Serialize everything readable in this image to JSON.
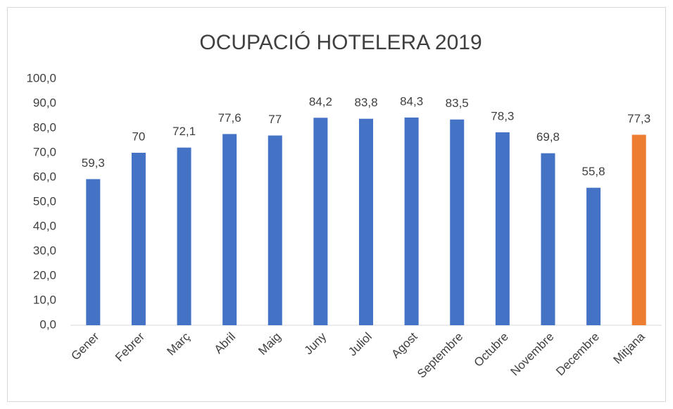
{
  "chart_data": {
    "type": "bar",
    "title": "OCUPACIÓ HOTELERA 2019",
    "categories": [
      "Gener",
      "Febrer",
      "Març",
      "Abril",
      "Maig",
      "Juny",
      "Juliol",
      "Agost",
      "Septembre",
      "Octubre",
      "Novembre",
      "Decembre",
      "Mitjana"
    ],
    "values": [
      59.3,
      70,
      72.1,
      77.6,
      77,
      84.2,
      83.8,
      84.3,
      83.5,
      78.3,
      69.8,
      55.8,
      77.3
    ],
    "value_labels": [
      "59,3",
      "70",
      "72,1",
      "77,6",
      "77",
      "84,2",
      "83,8",
      "84,3",
      "83,5",
      "78,3",
      "69,8",
      "55,8",
      "77,3"
    ],
    "colors": [
      "#4472c4",
      "#4472c4",
      "#4472c4",
      "#4472c4",
      "#4472c4",
      "#4472c4",
      "#4472c4",
      "#4472c4",
      "#4472c4",
      "#4472c4",
      "#4472c4",
      "#4472c4",
      "#ed7d31"
    ],
    "ylim": [
      0,
      100
    ],
    "yticks": [
      {
        "value": 0,
        "label": "0,0"
      },
      {
        "value": 10,
        "label": "10,0"
      },
      {
        "value": 20,
        "label": "20,0"
      },
      {
        "value": 30,
        "label": "30,0"
      },
      {
        "value": 40,
        "label": "40,0"
      },
      {
        "value": 50,
        "label": "50,0"
      },
      {
        "value": 60,
        "label": "60,0"
      },
      {
        "value": 70,
        "label": "70,0"
      },
      {
        "value": 80,
        "label": "80,0"
      },
      {
        "value": 90,
        "label": "90,0"
      },
      {
        "value": 100,
        "label": "100,0"
      }
    ],
    "grid": false
  }
}
